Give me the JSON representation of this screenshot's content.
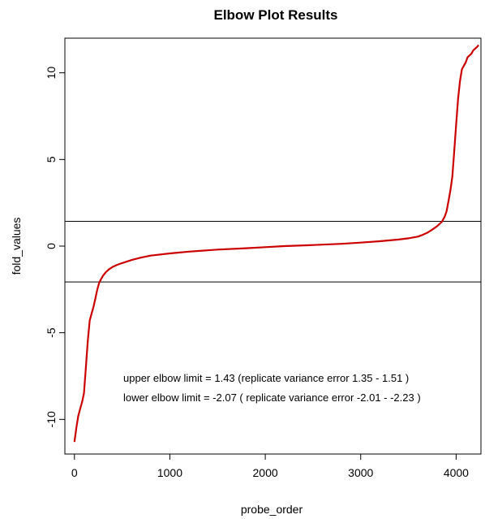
{
  "chart_data": {
    "type": "line",
    "title": "Elbow Plot Results",
    "xlabel": "probe_order",
    "ylabel": "fold_values",
    "xlim": [
      -100,
      4260
    ],
    "ylim": [
      -12,
      12
    ],
    "x_ticks": [
      0,
      1000,
      2000,
      3000,
      4000
    ],
    "x_tick_labels": [
      "0",
      "1000",
      "2000",
      "3000",
      "4000"
    ],
    "y_ticks": [
      -10,
      -5,
      0,
      5,
      10
    ],
    "y_tick_labels": [
      "-10",
      "-5",
      "0",
      "5",
      "10"
    ],
    "grid": false,
    "series": [
      {
        "color": "#cc0000",
        "x": [
          0,
          20,
          40,
          60,
          80,
          100,
          120,
          140,
          160,
          180,
          200,
          220,
          240,
          260,
          280,
          300,
          330,
          360,
          400,
          450,
          500,
          600,
          700,
          800,
          1000,
          1200,
          1500,
          1800,
          2000,
          2200,
          2500,
          2800,
          3000,
          3200,
          3400,
          3500,
          3600,
          3650,
          3700,
          3750,
          3800,
          3850,
          3880,
          3900,
          3920,
          3940,
          3960,
          3980,
          4000,
          4020,
          4040,
          4060,
          4080,
          4100,
          4120,
          4140,
          4160,
          4180,
          4200,
          4220,
          4235
        ],
        "y": [
          -11.3,
          -10.5,
          -9.8,
          -9.4,
          -9.0,
          -8.5,
          -7.0,
          -5.5,
          -4.3,
          -3.9,
          -3.5,
          -3.0,
          -2.5,
          -2.1,
          -1.9,
          -1.7,
          -1.5,
          -1.35,
          -1.2,
          -1.08,
          -0.98,
          -0.8,
          -0.66,
          -0.55,
          -0.42,
          -0.32,
          -0.2,
          -0.12,
          -0.06,
          0.0,
          0.06,
          0.13,
          0.2,
          0.28,
          0.38,
          0.45,
          0.55,
          0.65,
          0.78,
          0.95,
          1.15,
          1.4,
          1.7,
          2.0,
          2.6,
          3.2,
          4.0,
          5.5,
          7.0,
          8.5,
          9.5,
          10.2,
          10.4,
          10.6,
          10.9,
          11.0,
          11.1,
          11.3,
          11.4,
          11.5,
          11.6
        ]
      }
    ],
    "hlines": [
      1.43,
      -2.07
    ],
    "annotations": [
      "upper elbow limit = 1.43 (replicate variance error 1.35 - 1.51 )",
      "lower elbow limit = -2.07 ( replicate variance error -2.01 - -2.23 )"
    ]
  }
}
